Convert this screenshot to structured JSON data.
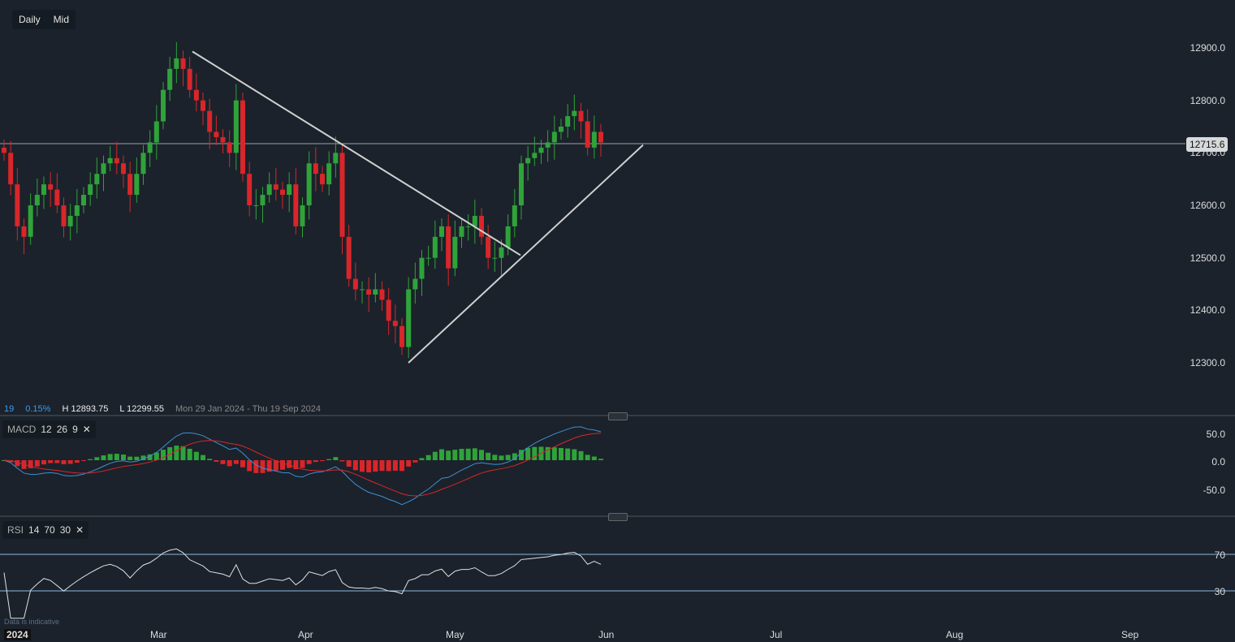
{
  "toolbar": {
    "interval": "Daily",
    "price_type": "Mid"
  },
  "info": {
    "period": "19",
    "change": "0.15%",
    "high": "H 12893.75",
    "low": "L 12299.55",
    "range": "Mon 29 Jan 2024 - Thu 19 Sep 2024"
  },
  "macd": {
    "name": "MACD",
    "p1": "12",
    "p2": "26",
    "p3": "9",
    "close": "✕",
    "ticks": [
      "50.0",
      "0.0",
      "-50.0"
    ]
  },
  "rsi": {
    "name": "RSI",
    "p1": "14",
    "p2": "70",
    "p3": "30",
    "close": "✕",
    "ticks": [
      "70",
      "30"
    ]
  },
  "note": "Data is indicative",
  "current_price": "12715.6",
  "chart_data": {
    "type": "candlestick",
    "y_ticks": [
      "12900.0",
      "12800.0",
      "12700.0",
      "12600.0",
      "12500.0",
      "12400.0",
      "12300.0"
    ],
    "ylim": [
      12300,
      12900
    ],
    "x_ticks": [
      "2024",
      "Mar",
      "Apr",
      "May",
      "Jun",
      "Jul",
      "Aug",
      "Sep"
    ],
    "closes": [
      12700,
      12640,
      12560,
      12540,
      12600,
      12620,
      12640,
      12630,
      12600,
      12560,
      12580,
      12600,
      12620,
      12640,
      12660,
      12680,
      12690,
      12680,
      12660,
      12620,
      12660,
      12700,
      12720,
      12760,
      12820,
      12860,
      12880,
      12860,
      12820,
      12800,
      12780,
      12740,
      12730,
      12720,
      12700,
      12800,
      12660,
      12600,
      12600,
      12620,
      12640,
      12630,
      12620,
      12640,
      12560,
      12600,
      12680,
      12660,
      12640,
      12680,
      12700,
      12540,
      12460,
      12440,
      12440,
      12430,
      12440,
      12420,
      12380,
      12370,
      12330,
      12440,
      12460,
      12500,
      12500,
      12540,
      12560,
      12480,
      12540,
      12560,
      12560,
      12580,
      12540,
      12500,
      12500,
      12520,
      12560,
      12600,
      12680,
      12690,
      12700,
      12710,
      12720,
      12740,
      12750,
      12770,
      12780,
      12760,
      12710,
      12740,
      12720
    ],
    "trendlines": [
      {
        "from": [
          "8 Mar",
          12893
        ],
        "to": [
          "14 May",
          12505
        ]
      },
      {
        "from": [
          "22 Apr",
          12300
        ],
        "to": [
          "7 Jun",
          12715
        ]
      }
    ],
    "rsi_levels": [
      70,
      30
    ]
  }
}
